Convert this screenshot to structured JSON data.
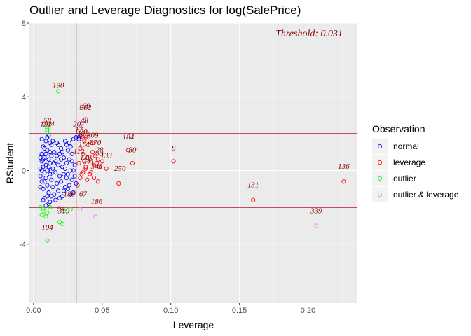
{
  "chart_data": {
    "type": "scatter",
    "title": "Outlier and Leverage Diagnostics for log(SalePrice)",
    "xlabel": "Leverage",
    "ylabel": "RStudent",
    "xlim": [
      -0.003,
      0.236
    ],
    "ylim": [
      -7.2,
      8.0
    ],
    "x_ticks": [
      0.0,
      0.05,
      0.1,
      0.15,
      0.2
    ],
    "x_tick_labels": [
      "0.00",
      "0.05",
      "0.10",
      "0.15",
      "0.20"
    ],
    "y_ticks": [
      -4,
      0,
      4,
      8
    ],
    "y_tick_labels": [
      "-4",
      "0",
      "4",
      "8"
    ],
    "hlines": [
      -2,
      2
    ],
    "vline": 0.031,
    "threshold_label": "Threshold: 0.031",
    "grid": true,
    "legend_position": "right",
    "legend_title": "Observation",
    "colors": {
      "panel": "#ebebeb",
      "grid_major": "#ffffff",
      "grid_minor": "#f5f5f5",
      "reference_lines": "#b0143c",
      "threshold_text": "#8b0000",
      "label_text": "#8b0000"
    },
    "series": [
      {
        "name": "normal",
        "color": "#0000ff",
        "points": [
          [
            0.005,
            0.1
          ],
          [
            0.005,
            -0.3
          ],
          [
            0.006,
            0.5
          ],
          [
            0.006,
            -0.6
          ],
          [
            0.006,
            0.9
          ],
          [
            0.007,
            -1.0
          ],
          [
            0.007,
            1.3
          ],
          [
            0.007,
            0.2
          ],
          [
            0.008,
            -0.1
          ],
          [
            0.008,
            0.7
          ],
          [
            0.008,
            -1.5
          ],
          [
            0.009,
            1.6
          ],
          [
            0.009,
            -0.4
          ],
          [
            0.009,
            0.3
          ],
          [
            0.01,
            -0.8
          ],
          [
            0.01,
            1.1
          ],
          [
            0.01,
            0.0
          ],
          [
            0.011,
            -1.2
          ],
          [
            0.011,
            0.6
          ],
          [
            0.011,
            1.9
          ],
          [
            0.012,
            -0.2
          ],
          [
            0.012,
            0.4
          ],
          [
            0.012,
            -1.7
          ],
          [
            0.013,
            1.4
          ],
          [
            0.013,
            -0.5
          ],
          [
            0.013,
            0.8
          ],
          [
            0.014,
            -0.9
          ],
          [
            0.014,
            0.1
          ],
          [
            0.015,
            1.0
          ],
          [
            0.015,
            -1.3
          ],
          [
            0.016,
            0.5
          ],
          [
            0.016,
            -0.1
          ],
          [
            0.017,
            1.5
          ],
          [
            0.017,
            -0.7
          ],
          [
            0.018,
            0.3
          ],
          [
            0.018,
            -1.1
          ],
          [
            0.019,
            0.9
          ],
          [
            0.019,
            -0.3
          ],
          [
            0.02,
            1.2
          ],
          [
            0.02,
            -0.6
          ],
          [
            0.021,
            0.2
          ],
          [
            0.021,
            -1.4
          ],
          [
            0.022,
            0.7
          ],
          [
            0.022,
            -0.2
          ],
          [
            0.023,
            1.6
          ],
          [
            0.023,
            -0.9
          ],
          [
            0.024,
            0.4
          ],
          [
            0.024,
            -0.4
          ],
          [
            0.025,
            1.1
          ],
          [
            0.025,
            -1.0
          ],
          [
            0.026,
            0.6
          ],
          [
            0.026,
            -0.8
          ],
          [
            0.027,
            1.3
          ],
          [
            0.027,
            0.0
          ],
          [
            0.028,
            -0.5
          ],
          [
            0.028,
            0.9
          ],
          [
            0.029,
            1.7
          ],
          [
            0.029,
            -1.2
          ],
          [
            0.03,
            0.3
          ],
          [
            0.03,
            -0.3
          ],
          [
            0.031,
            1.8
          ],
          [
            0.031,
            -0.7
          ],
          [
            0.006,
            1.7
          ],
          [
            0.007,
            -1.6
          ],
          [
            0.008,
            1.2
          ],
          [
            0.009,
            -1.9
          ],
          [
            0.01,
            1.8
          ],
          [
            0.011,
            -1.8
          ],
          [
            0.012,
            1.5
          ],
          [
            0.013,
            -1.4
          ],
          [
            0.014,
            1.6
          ],
          [
            0.015,
            0.4
          ],
          [
            0.016,
            -1.6
          ],
          [
            0.017,
            0.8
          ],
          [
            0.018,
            1.4
          ],
          [
            0.019,
            -1.5
          ],
          [
            0.02,
            0.6
          ],
          [
            0.021,
            1.0
          ],
          [
            0.022,
            -1.1
          ],
          [
            0.023,
            0.1
          ],
          [
            0.024,
            1.4
          ],
          [
            0.025,
            -0.2
          ],
          [
            0.026,
            1.5
          ],
          [
            0.027,
            -1.3
          ],
          [
            0.028,
            0.5
          ],
          [
            0.029,
            0.0
          ],
          [
            0.005,
            0.7
          ],
          [
            0.005,
            -0.9
          ],
          [
            0.006,
            0.0
          ],
          [
            0.007,
            0.6
          ],
          [
            0.008,
            -0.6
          ],
          [
            0.009,
            0.9
          ],
          [
            0.01,
            -1.4
          ],
          [
            0.011,
            0.2
          ],
          [
            0.012,
            1.0
          ],
          [
            0.013,
            0.0
          ],
          [
            0.032,
            1.9
          ],
          [
            0.033,
            1.8
          ],
          [
            0.034,
            1.9
          ],
          [
            0.033,
            1.7
          ]
        ]
      },
      {
        "name": "leverage",
        "color": "#ff0000",
        "points": [
          [
            0.032,
            -0.8
          ],
          [
            0.033,
            0.4
          ],
          [
            0.034,
            1.2
          ],
          [
            0.035,
            -0.2
          ],
          [
            0.036,
            0.9
          ],
          [
            0.037,
            1.6
          ],
          [
            0.038,
            0.2
          ],
          [
            0.039,
            -0.5
          ],
          [
            0.04,
            1.4
          ],
          [
            0.041,
            0.6
          ],
          [
            0.042,
            -0.1
          ],
          [
            0.043,
            1.0
          ],
          [
            0.044,
            0.3
          ],
          [
            0.045,
            0.8
          ],
          [
            0.046,
            0.4
          ],
          [
            0.047,
            0.6
          ],
          [
            0.048,
            0.2
          ],
          [
            0.05,
            0.5
          ],
          [
            0.053,
            0.1
          ],
          [
            0.062,
            -0.7
          ],
          [
            0.069,
            1.1
          ],
          [
            0.072,
            0.4
          ],
          [
            0.102,
            0.5
          ],
          [
            0.16,
            -1.6
          ],
          [
            0.226,
            -0.6
          ],
          [
            0.036,
            -0.1
          ],
          [
            0.038,
            0.1
          ],
          [
            0.041,
            -0.2
          ],
          [
            0.044,
            -0.4
          ],
          [
            0.047,
            -0.6
          ],
          [
            0.035,
            1.9
          ],
          [
            0.036,
            1.8
          ],
          [
            0.037,
            1.7
          ],
          [
            0.04,
            1.8
          ],
          [
            0.043,
            1.5
          ],
          [
            0.034,
            -0.4
          ],
          [
            0.037,
            0.5
          ],
          [
            0.039,
            0.7
          ]
        ]
      },
      {
        "name": "outlier",
        "color": "#00ff00",
        "points": [
          [
            0.018,
            4.3
          ],
          [
            0.01,
            2.1
          ],
          [
            0.01,
            2.2
          ],
          [
            0.01,
            2.3
          ],
          [
            0.005,
            -2.0
          ],
          [
            0.006,
            -2.4
          ],
          [
            0.008,
            -2.2
          ],
          [
            0.01,
            -2.3
          ],
          [
            0.012,
            -2.0
          ],
          [
            0.019,
            -2.8
          ],
          [
            0.021,
            -2.9
          ],
          [
            0.022,
            -2.2
          ],
          [
            0.027,
            -2.1
          ],
          [
            0.01,
            -3.8
          ],
          [
            0.009,
            -2.5
          ],
          [
            0.007,
            -2.1
          ]
        ]
      },
      {
        "name": "outlier & leverage",
        "color": "#ee82ee",
        "points": [
          [
            0.035,
            2.4
          ],
          [
            0.038,
            2.8
          ],
          [
            0.034,
            -2.1
          ],
          [
            0.045,
            -2.5
          ],
          [
            0.206,
            -3.0
          ]
        ]
      }
    ],
    "annotations": [
      {
        "text": "190",
        "x": 0.018,
        "y": 4.3
      },
      {
        "text": "169",
        "x": 0.037,
        "y": 3.2
      },
      {
        "text": "302",
        "x": 0.038,
        "y": 3.1
      },
      {
        "text": "58",
        "x": 0.01,
        "y": 2.4
      },
      {
        "text": "244",
        "x": 0.011,
        "y": 2.2
      },
      {
        "text": "192",
        "x": 0.009,
        "y": 2.2
      },
      {
        "text": "48",
        "x": 0.037,
        "y": 2.4
      },
      {
        "text": "207",
        "x": 0.033,
        "y": 2.2
      },
      {
        "text": "17",
        "x": 0.033,
        "y": 1.9
      },
      {
        "text": "220",
        "x": 0.035,
        "y": 1.8
      },
      {
        "text": "103",
        "x": 0.036,
        "y": 1.7
      },
      {
        "text": "309",
        "x": 0.043,
        "y": 1.6
      },
      {
        "text": "184",
        "x": 0.069,
        "y": 1.5
      },
      {
        "text": "370",
        "x": 0.045,
        "y": 1.2
      },
      {
        "text": "101",
        "x": 0.037,
        "y": 1.1
      },
      {
        "text": "80",
        "x": 0.072,
        "y": 0.8
      },
      {
        "text": "8",
        "x": 0.102,
        "y": 0.9
      },
      {
        "text": "28",
        "x": 0.048,
        "y": 0.8
      },
      {
        "text": "53",
        "x": 0.048,
        "y": 0.6
      },
      {
        "text": "133",
        "x": 0.053,
        "y": 0.5
      },
      {
        "text": "112",
        "x": 0.033,
        "y": 0.7
      },
      {
        "text": "130",
        "x": 0.038,
        "y": 0.4
      },
      {
        "text": "241",
        "x": 0.04,
        "y": 0.2
      },
      {
        "text": "346",
        "x": 0.046,
        "y": -0.1
      },
      {
        "text": "250",
        "x": 0.063,
        "y": -0.2
      },
      {
        "text": "136",
        "x": 0.226,
        "y": -0.1
      },
      {
        "text": "131",
        "x": 0.16,
        "y": -1.1
      },
      {
        "text": "67",
        "x": 0.036,
        "y": -1.6
      },
      {
        "text": "186",
        "x": 0.046,
        "y": -2.0
      },
      {
        "text": "339",
        "x": 0.206,
        "y": -2.5
      },
      {
        "text": "104",
        "x": 0.01,
        "y": -3.4
      },
      {
        "text": "94",
        "x": 0.02,
        "y": -2.4
      },
      {
        "text": "319",
        "x": 0.022,
        "y": -2.5
      },
      {
        "text": "186",
        "x": 0.026,
        "y": -1.6
      }
    ]
  }
}
